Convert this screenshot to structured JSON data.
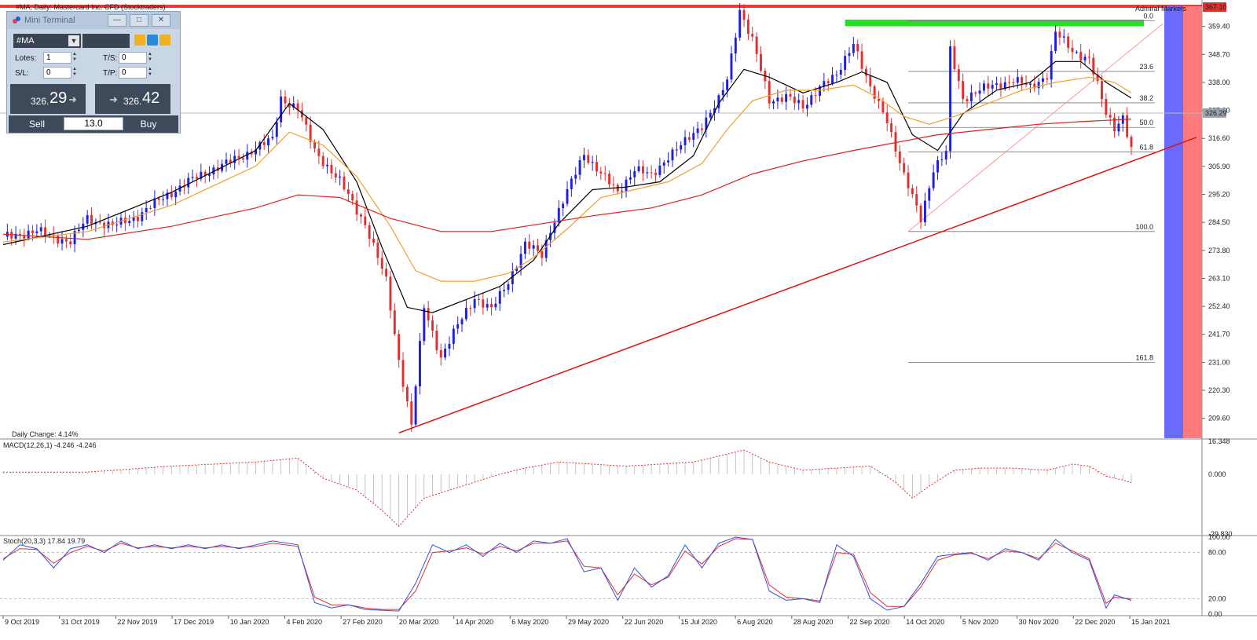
{
  "chart_title": "#MA, Daily: Mastercard Inc. CFD (Stocktraders)",
  "broker_label": "Admiral Markets",
  "colors": {
    "bull": "#1f1fe0",
    "bear": "#e23030",
    "ma_fast": "#000000",
    "ma_mid": "#f0a030",
    "ma_slow": "#e02020",
    "fib": "#9a9a9a",
    "macd": "#e03030",
    "stoch_main": "#3050e0",
    "stoch_signal": "#e03030"
  },
  "chart_data": {
    "type": "candlestick",
    "price_axis": {
      "min": 202,
      "max": 367.1,
      "ticks": [
        "359.40",
        "348.70",
        "338.00",
        "327.30",
        "316.60",
        "305.90",
        "295.20",
        "284.50",
        "273.80",
        "263.10",
        "252.40",
        "241.70",
        "231.00",
        "220.30",
        "209.60"
      ]
    },
    "current_price_label": "326.29",
    "top_price_label": "367.10",
    "x_axis_labels": [
      "9 Oct 2019",
      "31 Oct 2019",
      "22 Nov 2019",
      "17 Dec 2019",
      "10 Jan 2020",
      "4 Feb 2020",
      "27 Feb 2020",
      "20 Mar 2020",
      "14 Apr 2020",
      "6 May 2020",
      "29 May 2020",
      "22 Jun 2020",
      "15 Jul 2020",
      "6 Aug 2020",
      "28 Aug 2020",
      "22 Sep 2020",
      "14 Oct 2020",
      "5 Nov 2020",
      "30 Nov 2020",
      "22 Dec 2020",
      "15 Jan 2021"
    ],
    "close_path": [
      [
        0,
        279
      ],
      [
        8,
        281
      ],
      [
        16,
        277
      ],
      [
        20,
        286
      ],
      [
        26,
        283
      ],
      [
        32,
        287
      ],
      [
        38,
        294
      ],
      [
        44,
        300
      ],
      [
        50,
        305
      ],
      [
        56,
        309
      ],
      [
        60,
        313
      ],
      [
        64,
        316
      ],
      [
        66,
        332
      ],
      [
        70,
        328
      ],
      [
        74,
        312
      ],
      [
        80,
        300
      ],
      [
        86,
        284
      ],
      [
        91,
        262
      ],
      [
        94,
        232
      ],
      [
        97,
        207
      ],
      [
        100,
        252
      ],
      [
        104,
        233
      ],
      [
        108,
        245
      ],
      [
        112,
        256
      ],
      [
        116,
        251
      ],
      [
        120,
        262
      ],
      [
        124,
        276
      ],
      [
        128,
        272
      ],
      [
        130,
        282
      ],
      [
        134,
        296
      ],
      [
        138,
        311
      ],
      [
        142,
        303
      ],
      [
        146,
        296
      ],
      [
        150,
        305
      ],
      [
        154,
        302
      ],
      [
        158,
        310
      ],
      [
        162,
        315
      ],
      [
        166,
        322
      ],
      [
        170,
        331
      ],
      [
        172,
        339
      ],
      [
        175,
        366
      ],
      [
        178,
        354
      ],
      [
        182,
        331
      ],
      [
        186,
        333
      ],
      [
        190,
        328
      ],
      [
        194,
        337
      ],
      [
        198,
        340
      ],
      [
        202,
        354
      ],
      [
        206,
        335
      ],
      [
        210,
        324
      ],
      [
        214,
        302
      ],
      [
        218,
        286
      ],
      [
        221,
        305
      ],
      [
        224,
        311
      ],
      [
        225,
        350
      ],
      [
        228,
        332
      ],
      [
        232,
        335
      ],
      [
        236,
        337
      ],
      [
        240,
        339
      ],
      [
        244,
        336
      ],
      [
        248,
        341
      ],
      [
        250,
        357
      ],
      [
        254,
        350
      ],
      [
        258,
        347
      ],
      [
        262,
        326
      ],
      [
        264,
        321
      ],
      [
        266,
        325
      ],
      [
        268,
        312
      ]
    ],
    "close_count": 269,
    "moving_averages": [
      {
        "name": "fast",
        "points": [
          [
            0,
            276
          ],
          [
            20,
            283
          ],
          [
            40,
            296
          ],
          [
            60,
            312
          ],
          [
            68,
            330
          ],
          [
            76,
            320
          ],
          [
            84,
            300
          ],
          [
            90,
            275
          ],
          [
            96,
            252
          ],
          [
            102,
            250
          ],
          [
            110,
            255
          ],
          [
            118,
            260
          ],
          [
            126,
            270
          ],
          [
            132,
            284
          ],
          [
            140,
            297
          ],
          [
            148,
            298
          ],
          [
            156,
            300
          ],
          [
            164,
            310
          ],
          [
            170,
            330
          ],
          [
            176,
            343
          ],
          [
            182,
            340
          ],
          [
            190,
            334
          ],
          [
            198,
            338
          ],
          [
            204,
            342
          ],
          [
            210,
            338
          ],
          [
            216,
            318
          ],
          [
            222,
            312
          ],
          [
            228,
            326
          ],
          [
            236,
            335
          ],
          [
            244,
            338
          ],
          [
            250,
            346
          ],
          [
            256,
            346
          ],
          [
            262,
            338
          ],
          [
            268,
            332
          ]
        ]
      },
      {
        "name": "mid",
        "points": [
          [
            0,
            277
          ],
          [
            20,
            281
          ],
          [
            40,
            291
          ],
          [
            60,
            306
          ],
          [
            68,
            319
          ],
          [
            76,
            314
          ],
          [
            84,
            302
          ],
          [
            92,
            283
          ],
          [
            98,
            266
          ],
          [
            104,
            262
          ],
          [
            112,
            262
          ],
          [
            120,
            265
          ],
          [
            126,
            271
          ],
          [
            134,
            282
          ],
          [
            142,
            294
          ],
          [
            150,
            297
          ],
          [
            158,
            300
          ],
          [
            166,
            307
          ],
          [
            172,
            320
          ],
          [
            178,
            331
          ],
          [
            186,
            335
          ],
          [
            194,
            335
          ],
          [
            202,
            337
          ],
          [
            208,
            332
          ],
          [
            214,
            325
          ],
          [
            220,
            322
          ],
          [
            226,
            325
          ],
          [
            234,
            330
          ],
          [
            242,
            335
          ],
          [
            250,
            338
          ],
          [
            258,
            340
          ],
          [
            264,
            338
          ],
          [
            268,
            334
          ]
        ]
      },
      {
        "name": "slow",
        "points": [
          [
            0,
            280
          ],
          [
            20,
            278
          ],
          [
            40,
            283
          ],
          [
            60,
            290
          ],
          [
            70,
            295
          ],
          [
            80,
            294
          ],
          [
            92,
            286
          ],
          [
            104,
            281
          ],
          [
            116,
            281
          ],
          [
            128,
            284
          ],
          [
            140,
            287
          ],
          [
            154,
            290
          ],
          [
            166,
            295
          ],
          [
            178,
            303
          ],
          [
            190,
            308
          ],
          [
            202,
            312
          ],
          [
            212,
            315
          ],
          [
            222,
            318
          ],
          [
            234,
            320
          ],
          [
            246,
            322
          ],
          [
            256,
            323
          ],
          [
            268,
            324
          ]
        ]
      }
    ],
    "trendline": {
      "from": [
        94,
        204
      ],
      "to": [
        276,
        317
      ]
    },
    "resistance_zone": {
      "from_index": 200,
      "to_index": 271,
      "price_low": 359.5,
      "price_high": 362
    },
    "fibonacci": {
      "from_index": 215,
      "to_index": 268,
      "levels": [
        {
          "label": "0.0",
          "price": 361.5
        },
        {
          "label": "23.6",
          "price": 342.2
        },
        {
          "label": "38.2",
          "price": 330.2
        },
        {
          "label": "50.0",
          "price": 320.8
        },
        {
          "label": "61.8",
          "price": 311.4
        },
        {
          "label": "100.0",
          "price": 281.0
        },
        {
          "label": "161.8",
          "price": 231.0
        }
      ],
      "diagonal_from": [
        215,
        281
      ],
      "diagonal_to": [
        268,
        361
      ]
    },
    "daily_change_label": "Daily Change: 4.14%",
    "macd": {
      "label": "MACD(12,26,1) -4.246 -4.246",
      "axis_ticks": [
        "16.348",
        "0.000",
        "-29.830"
      ],
      "range": [
        -29.83,
        16.348
      ],
      "points": [
        [
          0,
          1
        ],
        [
          20,
          1
        ],
        [
          40,
          4
        ],
        [
          60,
          6
        ],
        [
          70,
          8
        ],
        [
          76,
          -2
        ],
        [
          84,
          -8
        ],
        [
          90,
          -18
        ],
        [
          94,
          -26
        ],
        [
          100,
          -12
        ],
        [
          106,
          -8
        ],
        [
          112,
          -4
        ],
        [
          118,
          0
        ],
        [
          124,
          3
        ],
        [
          132,
          6
        ],
        [
          140,
          5
        ],
        [
          148,
          4
        ],
        [
          156,
          5
        ],
        [
          164,
          6
        ],
        [
          170,
          9
        ],
        [
          176,
          12
        ],
        [
          182,
          6
        ],
        [
          190,
          2
        ],
        [
          198,
          3
        ],
        [
          206,
          4
        ],
        [
          212,
          -4
        ],
        [
          216,
          -12
        ],
        [
          220,
          -6
        ],
        [
          226,
          2
        ],
        [
          232,
          3
        ],
        [
          240,
          3
        ],
        [
          248,
          2
        ],
        [
          254,
          5
        ],
        [
          258,
          4
        ],
        [
          262,
          -1
        ],
        [
          266,
          -3
        ],
        [
          268,
          -4.246
        ]
      ]
    },
    "stochastic": {
      "label": "Stoch(20,3,3) 17.84 19.79",
      "axis_ticks": [
        "100.00",
        "80.00",
        "20.00",
        "0.00"
      ],
      "range": [
        0,
        100
      ],
      "main": [
        [
          0,
          70
        ],
        [
          4,
          90
        ],
        [
          8,
          85
        ],
        [
          12,
          60
        ],
        [
          16,
          85
        ],
        [
          20,
          90
        ],
        [
          24,
          80
        ],
        [
          28,
          95
        ],
        [
          32,
          85
        ],
        [
          36,
          90
        ],
        [
          40,
          85
        ],
        [
          44,
          90
        ],
        [
          48,
          85
        ],
        [
          52,
          90
        ],
        [
          56,
          85
        ],
        [
          60,
          90
        ],
        [
          64,
          95
        ],
        [
          70,
          90
        ],
        [
          74,
          15
        ],
        [
          78,
          8
        ],
        [
          82,
          12
        ],
        [
          86,
          6
        ],
        [
          90,
          5
        ],
        [
          94,
          4
        ],
        [
          98,
          40
        ],
        [
          102,
          90
        ],
        [
          106,
          80
        ],
        [
          110,
          90
        ],
        [
          114,
          75
        ],
        [
          118,
          92
        ],
        [
          122,
          80
        ],
        [
          126,
          95
        ],
        [
          130,
          92
        ],
        [
          134,
          98
        ],
        [
          138,
          55
        ],
        [
          142,
          60
        ],
        [
          146,
          18
        ],
        [
          150,
          60
        ],
        [
          154,
          35
        ],
        [
          158,
          50
        ],
        [
          162,
          90
        ],
        [
          166,
          60
        ],
        [
          170,
          92
        ],
        [
          174,
          100
        ],
        [
          178,
          97
        ],
        [
          182,
          30
        ],
        [
          186,
          18
        ],
        [
          190,
          20
        ],
        [
          194,
          15
        ],
        [
          198,
          90
        ],
        [
          202,
          75
        ],
        [
          206,
          20
        ],
        [
          210,
          5
        ],
        [
          214,
          10
        ],
        [
          218,
          40
        ],
        [
          222,
          75
        ],
        [
          226,
          78
        ],
        [
          230,
          80
        ],
        [
          234,
          70
        ],
        [
          238,
          85
        ],
        [
          242,
          80
        ],
        [
          246,
          70
        ],
        [
          250,
          97
        ],
        [
          254,
          80
        ],
        [
          258,
          70
        ],
        [
          262,
          8
        ],
        [
          264,
          25
        ],
        [
          268,
          17.84
        ]
      ],
      "signal": [
        [
          0,
          72
        ],
        [
          4,
          85
        ],
        [
          8,
          84
        ],
        [
          12,
          66
        ],
        [
          16,
          80
        ],
        [
          20,
          88
        ],
        [
          24,
          82
        ],
        [
          28,
          92
        ],
        [
          32,
          86
        ],
        [
          36,
          88
        ],
        [
          40,
          86
        ],
        [
          44,
          88
        ],
        [
          48,
          86
        ],
        [
          52,
          88
        ],
        [
          56,
          86
        ],
        [
          60,
          88
        ],
        [
          64,
          92
        ],
        [
          70,
          88
        ],
        [
          74,
          22
        ],
        [
          78,
          12
        ],
        [
          82,
          12
        ],
        [
          86,
          8
        ],
        [
          90,
          6
        ],
        [
          94,
          6
        ],
        [
          98,
          30
        ],
        [
          102,
          80
        ],
        [
          106,
          82
        ],
        [
          110,
          86
        ],
        [
          114,
          78
        ],
        [
          118,
          88
        ],
        [
          122,
          82
        ],
        [
          126,
          92
        ],
        [
          130,
          92
        ],
        [
          134,
          95
        ],
        [
          138,
          62
        ],
        [
          142,
          60
        ],
        [
          146,
          25
        ],
        [
          150,
          52
        ],
        [
          154,
          38
        ],
        [
          158,
          48
        ],
        [
          162,
          82
        ],
        [
          166,
          65
        ],
        [
          170,
          88
        ],
        [
          174,
          98
        ],
        [
          178,
          97
        ],
        [
          182,
          38
        ],
        [
          186,
          22
        ],
        [
          190,
          20
        ],
        [
          194,
          17
        ],
        [
          198,
          80
        ],
        [
          202,
          78
        ],
        [
          206,
          28
        ],
        [
          210,
          10
        ],
        [
          214,
          10
        ],
        [
          218,
          35
        ],
        [
          222,
          70
        ],
        [
          226,
          77
        ],
        [
          230,
          79
        ],
        [
          234,
          72
        ],
        [
          238,
          82
        ],
        [
          242,
          80
        ],
        [
          246,
          72
        ],
        [
          250,
          92
        ],
        [
          254,
          82
        ],
        [
          258,
          72
        ],
        [
          262,
          14
        ],
        [
          264,
          22
        ],
        [
          268,
          19.79
        ]
      ]
    }
  },
  "mini_terminal": {
    "title": "Mini Terminal",
    "symbol": "#MA",
    "lots_label": "Lotes:",
    "lots_value": "1",
    "ts_label": "T/S:",
    "ts_value": "0",
    "sl_label": "S/L:",
    "sl_value": "0",
    "tp_label": "T/P:",
    "tp_value": "0",
    "sell_price_small": "326.",
    "sell_price_big": "29",
    "buy_price_small": "326.",
    "buy_price_big": "42",
    "sell_label": "Sell",
    "buy_label": "Buy",
    "lot_size": "13.0"
  }
}
